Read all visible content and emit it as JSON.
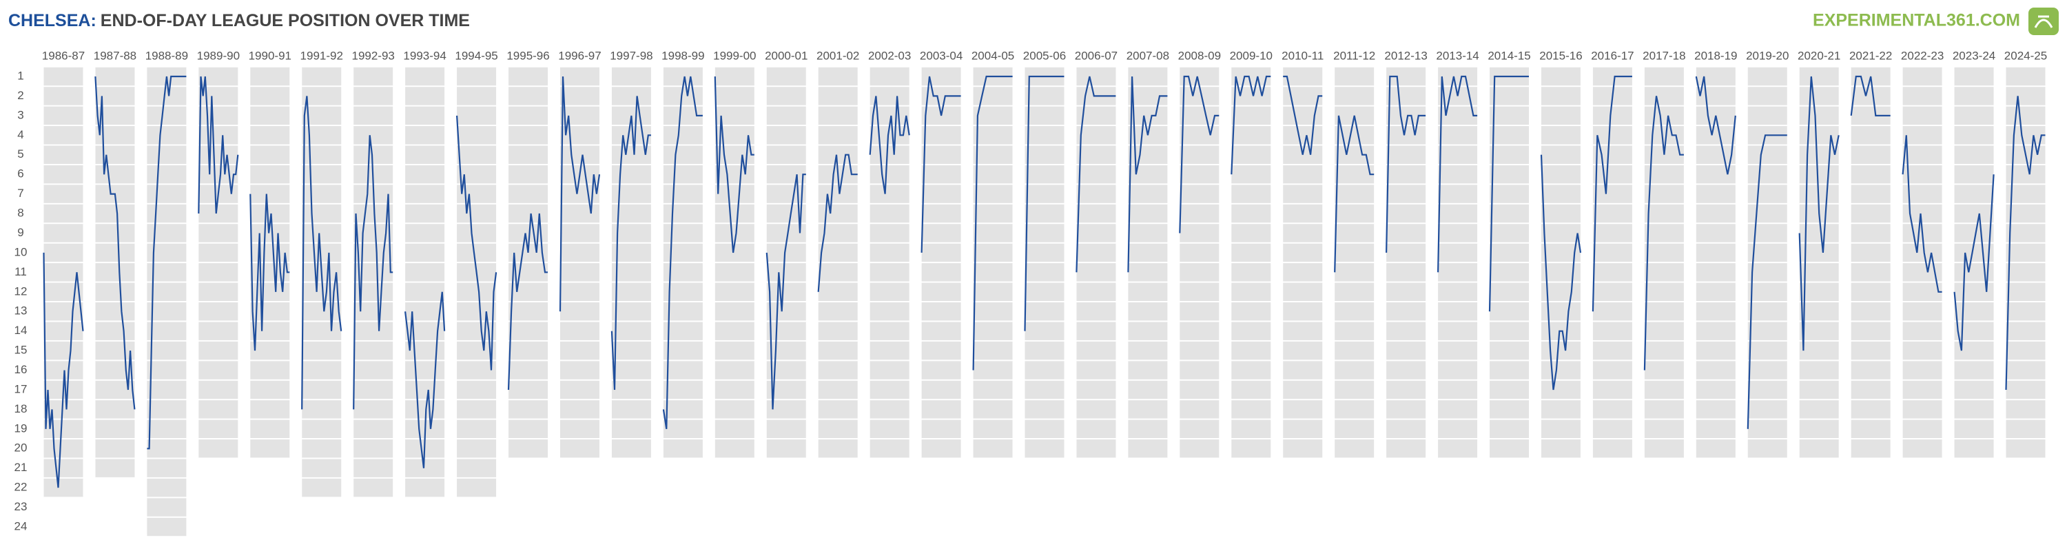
{
  "chart_data": {
    "type": "step",
    "title_team": "CHELSEA:",
    "title": "END-OF-DAY LEAGUE POSITION OVER TIME",
    "brand": "EXPERIMENTAL361.COM",
    "color": "#1f4e9c",
    "ylim": [
      1,
      24
    ],
    "yticks": [
      1,
      2,
      3,
      4,
      5,
      6,
      7,
      8,
      9,
      10,
      11,
      12,
      13,
      14,
      15,
      16,
      17,
      18,
      19,
      20,
      21,
      22,
      23,
      24
    ],
    "seasons": [
      {
        "name": "1986-87",
        "teams": 22,
        "values": [
          10,
          19,
          17,
          19,
          18,
          20,
          21,
          22,
          20,
          18,
          16,
          18,
          16,
          15,
          13,
          12,
          11,
          12,
          13,
          14
        ]
      },
      {
        "name": "1987-88",
        "teams": 21,
        "values": [
          1,
          3,
          4,
          2,
          6,
          5,
          6,
          7,
          7,
          7,
          8,
          11,
          13,
          14,
          16,
          17,
          15,
          17,
          18
        ]
      },
      {
        "name": "1988-89",
        "teams": 24,
        "values": [
          20,
          20,
          15,
          10,
          8,
          6,
          4,
          3,
          2,
          1,
          2,
          1,
          1,
          1,
          1,
          1,
          1,
          1,
          1
        ]
      },
      {
        "name": "1989-90",
        "teams": 20,
        "values": [
          8,
          1,
          2,
          1,
          3,
          6,
          2,
          5,
          8,
          7,
          6,
          4,
          6,
          5,
          6,
          7,
          6,
          6,
          5
        ]
      },
      {
        "name": "1990-91",
        "teams": 20,
        "values": [
          7,
          13,
          15,
          12,
          9,
          14,
          10,
          7,
          9,
          8,
          10,
          12,
          9,
          11,
          12,
          10,
          11,
          11
        ]
      },
      {
        "name": "1991-92",
        "teams": 22,
        "values": [
          18,
          3,
          2,
          4,
          8,
          10,
          12,
          9,
          11,
          13,
          12,
          10,
          14,
          12,
          11,
          13,
          14
        ]
      },
      {
        "name": "1992-93",
        "teams": 22,
        "values": [
          18,
          8,
          10,
          13,
          9,
          8,
          7,
          4,
          5,
          8,
          10,
          14,
          12,
          10,
          9,
          7,
          11,
          11
        ]
      },
      {
        "name": "1993-94",
        "teams": 22,
        "values": [
          13,
          14,
          15,
          13,
          15,
          17,
          19,
          20,
          21,
          18,
          17,
          19,
          18,
          16,
          14,
          13,
          12,
          14
        ]
      },
      {
        "name": "1994-95",
        "teams": 22,
        "values": [
          3,
          5,
          7,
          6,
          8,
          7,
          9,
          10,
          11,
          12,
          14,
          15,
          13,
          14,
          16,
          12,
          11
        ]
      },
      {
        "name": "1995-96",
        "teams": 20,
        "values": [
          17,
          13,
          10,
          12,
          11,
          10,
          9,
          10,
          8,
          9,
          10,
          8,
          10,
          11,
          11
        ]
      },
      {
        "name": "1996-97",
        "teams": 20,
        "values": [
          13,
          1,
          4,
          3,
          5,
          6,
          7,
          6,
          5,
          6,
          7,
          8,
          6,
          7,
          6
        ]
      },
      {
        "name": "1997-98",
        "teams": 20,
        "values": [
          14,
          17,
          9,
          6,
          4,
          5,
          4,
          3,
          5,
          2,
          3,
          4,
          5,
          4,
          4
        ]
      },
      {
        "name": "1998-99",
        "teams": 20,
        "values": [
          18,
          19,
          12,
          8,
          5,
          4,
          2,
          1,
          2,
          1,
          2,
          3,
          3,
          3
        ]
      },
      {
        "name": "1999-00",
        "teams": 20,
        "values": [
          1,
          7,
          3,
          5,
          6,
          8,
          10,
          9,
          7,
          5,
          6,
          4,
          5,
          5
        ]
      },
      {
        "name": "2000-01",
        "teams": 20,
        "values": [
          10,
          12,
          18,
          15,
          11,
          13,
          10,
          9,
          8,
          7,
          6,
          9,
          6,
          6
        ]
      },
      {
        "name": "2001-02",
        "teams": 20,
        "values": [
          12,
          10,
          9,
          7,
          8,
          6,
          5,
          7,
          6,
          5,
          5,
          6,
          6,
          6
        ]
      },
      {
        "name": "2002-03",
        "teams": 20,
        "values": [
          5,
          3,
          2,
          4,
          6,
          7,
          4,
          3,
          5,
          2,
          4,
          4,
          3,
          4
        ]
      },
      {
        "name": "2003-04",
        "teams": 20,
        "values": [
          10,
          3,
          1,
          2,
          2,
          3,
          2,
          2,
          2,
          2,
          2
        ]
      },
      {
        "name": "2004-05",
        "teams": 20,
        "values": [
          16,
          3,
          2,
          1,
          1,
          1,
          1,
          1,
          1,
          1
        ]
      },
      {
        "name": "2005-06",
        "teams": 20,
        "values": [
          14,
          1,
          1,
          1,
          1,
          1,
          1,
          1,
          1,
          1
        ]
      },
      {
        "name": "2006-07",
        "teams": 20,
        "values": [
          11,
          4,
          2,
          1,
          2,
          2,
          2,
          2,
          2,
          2
        ]
      },
      {
        "name": "2007-08",
        "teams": 20,
        "values": [
          11,
          1,
          6,
          5,
          3,
          4,
          3,
          3,
          2,
          2,
          2
        ]
      },
      {
        "name": "2008-09",
        "teams": 20,
        "values": [
          9,
          1,
          1,
          2,
          1,
          2,
          3,
          4,
          3,
          3
        ]
      },
      {
        "name": "2009-10",
        "teams": 20,
        "values": [
          6,
          1,
          2,
          1,
          1,
          2,
          1,
          2,
          1,
          1
        ]
      },
      {
        "name": "2010-11",
        "teams": 20,
        "values": [
          1,
          1,
          2,
          3,
          4,
          5,
          4,
          5,
          3,
          2,
          2
        ]
      },
      {
        "name": "2011-12",
        "teams": 20,
        "values": [
          11,
          3,
          4,
          5,
          4,
          3,
          4,
          5,
          5,
          6,
          6
        ]
      },
      {
        "name": "2012-13",
        "teams": 20,
        "values": [
          10,
          1,
          1,
          1,
          3,
          4,
          3,
          3,
          4,
          3,
          3,
          3
        ]
      },
      {
        "name": "2013-14",
        "teams": 20,
        "values": [
          11,
          1,
          3,
          2,
          1,
          2,
          1,
          1,
          2,
          3,
          3
        ]
      },
      {
        "name": "2014-15",
        "teams": 20,
        "values": [
          13,
          1,
          1,
          1,
          1,
          1,
          1,
          1,
          1
        ]
      },
      {
        "name": "2015-16",
        "teams": 20,
        "values": [
          5,
          9,
          12,
          15,
          17,
          16,
          14,
          14,
          15,
          13,
          12,
          10,
          9,
          10
        ]
      },
      {
        "name": "2016-17",
        "teams": 20,
        "values": [
          13,
          4,
          5,
          7,
          3,
          1,
          1,
          1,
          1,
          1
        ]
      },
      {
        "name": "2017-18",
        "teams": 20,
        "values": [
          16,
          8,
          4,
          2,
          3,
          5,
          3,
          4,
          4,
          5,
          5
        ]
      },
      {
        "name": "2018-19",
        "teams": 20,
        "values": [
          1,
          2,
          1,
          3,
          4,
          3,
          4,
          5,
          6,
          5,
          3
        ]
      },
      {
        "name": "2019-20",
        "teams": 20,
        "values": [
          19,
          11,
          8,
          5,
          4,
          4,
          4,
          4,
          4,
          4
        ]
      },
      {
        "name": "2020-21",
        "teams": 20,
        "values": [
          9,
          15,
          5,
          1,
          3,
          8,
          10,
          7,
          4,
          5,
          4
        ]
      },
      {
        "name": "2021-22",
        "teams": 20,
        "values": [
          3,
          1,
          1,
          2,
          1,
          3,
          3,
          3,
          3
        ]
      },
      {
        "name": "2022-23",
        "teams": 20,
        "values": [
          6,
          4,
          8,
          9,
          10,
          8,
          10,
          11,
          10,
          11,
          12,
          12
        ]
      },
      {
        "name": "2023-24",
        "teams": 20,
        "values": [
          12,
          14,
          15,
          10,
          11,
          10,
          9,
          8,
          10,
          12,
          9,
          6
        ]
      },
      {
        "name": "2024-25",
        "teams": 20,
        "values": [
          17,
          9,
          4,
          2,
          4,
          5,
          6,
          4,
          5,
          4,
          4
        ]
      }
    ]
  }
}
